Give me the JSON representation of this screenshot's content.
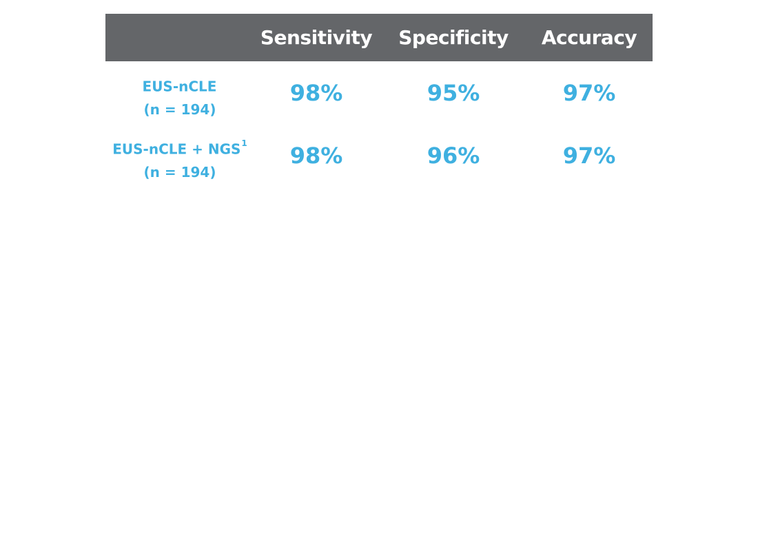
{
  "chart_data": {
    "type": "table",
    "columns": [
      "Sensitivity",
      "Specificity",
      "Accuracy"
    ],
    "rows": [
      {
        "label": "EUS-nCLE",
        "sublabel": "(n = 194)",
        "superscript": "",
        "values": [
          "98%",
          "95%",
          "97%"
        ]
      },
      {
        "label": "EUS-nCLE + NGS",
        "sublabel": "(n = 194)",
        "superscript": "1",
        "values": [
          "98%",
          "96%",
          "97%"
        ]
      }
    ]
  },
  "colors": {
    "header_background": "#646669",
    "header_text": "#ffffff",
    "accent": "#3fb0e0"
  }
}
